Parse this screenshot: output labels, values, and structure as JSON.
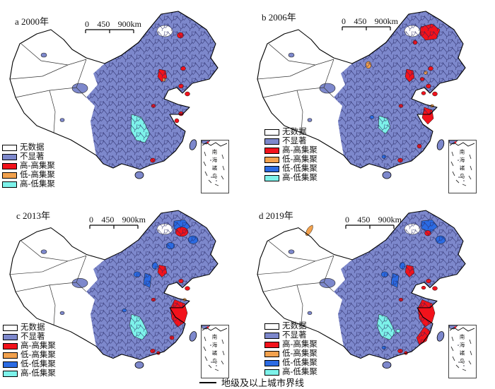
{
  "figure": {
    "colors": {
      "no_data": "#ffffff",
      "not_significant": "#7d88cc",
      "high_high": "#f2121b",
      "low_high": "#f2a14d",
      "low_low": "#2b6be3",
      "high_low": "#7df2ea",
      "boundary": "#000000",
      "county_line": "#23235e"
    },
    "scalebar": {
      "ticks": [
        "0",
        "450",
        "900km"
      ]
    },
    "footer": {
      "label": "地级及以上城市界线"
    },
    "panels": [
      {
        "id": "a",
        "label": "a 2000年",
        "inset_label": "南海诸岛",
        "legend": [
          {
            "label": "无数据",
            "color": "#ffffff"
          },
          {
            "label": "不显著",
            "color": "#7d88cc"
          },
          {
            "label": "高-高集聚",
            "color": "#f2121b"
          },
          {
            "label": "低-高集聚",
            "color": "#f2a14d"
          },
          {
            "label": "高-低集聚",
            "color": "#7df2ea"
          }
        ],
        "clusters": [
          {
            "region": "hulunbuir",
            "type": "no_data"
          },
          {
            "region": "harbin_dot",
            "type": "high_high"
          },
          {
            "region": "liaoning_a",
            "type": "high_high"
          },
          {
            "region": "beijing",
            "type": "high_high"
          },
          {
            "region": "tianjin_dot",
            "type": "low_high"
          },
          {
            "region": "shandong_a",
            "type": "high_high"
          },
          {
            "region": "shandong_b",
            "type": "high_high"
          },
          {
            "region": "central_dot",
            "type": "high_high"
          },
          {
            "region": "delta_small",
            "type": "high_high"
          },
          {
            "region": "delta_small2",
            "type": "high_high"
          },
          {
            "region": "pearl",
            "type": "high_high"
          },
          {
            "region": "sichuan_blob",
            "type": "high_low"
          }
        ]
      },
      {
        "id": "b",
        "label": "b 2006年",
        "inset_label": "南海诸岛",
        "legend": [
          {
            "label": "无数据",
            "color": "#ffffff"
          },
          {
            "label": "不显著",
            "color": "#7d88cc"
          },
          {
            "label": "高-高集聚",
            "color": "#f2121b"
          },
          {
            "label": "低-高集聚",
            "color": "#f2a14d"
          },
          {
            "label": "低-低集聚",
            "color": "#2b6be3"
          },
          {
            "label": "高-低集聚",
            "color": "#7df2ea"
          }
        ],
        "clusters": [
          {
            "region": "hulunbuir",
            "type": "no_data"
          },
          {
            "region": "harbin_big",
            "type": "high_high"
          },
          {
            "region": "nen_dot",
            "type": "high_high"
          },
          {
            "region": "liaoning_a",
            "type": "high_high"
          },
          {
            "region": "liaoning_orange",
            "type": "low_high"
          },
          {
            "region": "bohai_dot",
            "type": "high_high"
          },
          {
            "region": "beijing",
            "type": "high_high"
          },
          {
            "region": "inner_mongolia_west",
            "type": "low_high"
          },
          {
            "region": "shandong_a",
            "type": "high_high"
          },
          {
            "region": "shandong_b",
            "type": "high_high"
          },
          {
            "region": "shandong_c",
            "type": "high_high"
          },
          {
            "region": "central_dot",
            "type": "high_high"
          },
          {
            "region": "delta_mid",
            "type": "high_high"
          },
          {
            "region": "delta_orange",
            "type": "low_high"
          },
          {
            "region": "fujian_dot",
            "type": "high_high"
          },
          {
            "region": "pearl",
            "type": "high_high"
          },
          {
            "region": "sichuan_blob_small",
            "type": "high_low"
          },
          {
            "region": "chongqing_blue",
            "type": "low_low"
          },
          {
            "region": "guangxi_blue",
            "type": "low_low"
          }
        ]
      },
      {
        "id": "c",
        "label": "c 2013年",
        "inset_label": "南海诸岛",
        "legend": [
          {
            "label": "无数据",
            "color": "#ffffff"
          },
          {
            "label": "不显著",
            "color": "#7d88cc"
          },
          {
            "label": "高-高集聚",
            "color": "#f2121b"
          },
          {
            "label": "低-高集聚",
            "color": "#f2a14d"
          },
          {
            "label": "低-低集聚",
            "color": "#2b6be3"
          },
          {
            "label": "高-低集聚",
            "color": "#7df2ea"
          }
        ],
        "clusters": [
          {
            "region": "hulunbuir",
            "type": "no_data"
          },
          {
            "region": "ne_blue_a",
            "type": "low_low"
          },
          {
            "region": "ne_blue_b",
            "type": "low_low"
          },
          {
            "region": "ne_blue_c",
            "type": "low_low"
          },
          {
            "region": "harbin_mid",
            "type": "high_high"
          },
          {
            "region": "hebei_blue",
            "type": "low_low"
          },
          {
            "region": "shanxi_blue",
            "type": "low_low"
          },
          {
            "region": "north_blue",
            "type": "low_low"
          },
          {
            "region": "beijing",
            "type": "high_high"
          },
          {
            "region": "shandong_a",
            "type": "high_high"
          },
          {
            "region": "shandong_b",
            "type": "high_high"
          },
          {
            "region": "central_dot",
            "type": "high_high"
          },
          {
            "region": "delta_big",
            "type": "high_high"
          },
          {
            "region": "delta_orange",
            "type": "low_high"
          },
          {
            "region": "fujian_dot",
            "type": "high_high"
          },
          {
            "region": "pearl",
            "type": "high_high"
          },
          {
            "region": "pearl2",
            "type": "high_high"
          },
          {
            "region": "chongqing_blue",
            "type": "low_low"
          },
          {
            "region": "guizhou_blob",
            "type": "high_low"
          }
        ]
      },
      {
        "id": "d",
        "label": "d 2019年",
        "inset_label": "南海诸岛",
        "legend": [
          {
            "label": "无数据",
            "color": "#ffffff"
          },
          {
            "label": "不显著",
            "color": "#7d88cc"
          },
          {
            "label": "高-高集聚",
            "color": "#f2121b"
          },
          {
            "label": "低-高集聚",
            "color": "#f2a14d"
          },
          {
            "label": "低-低集聚",
            "color": "#2b6be3"
          },
          {
            "label": "高-低集聚",
            "color": "#7df2ea"
          }
        ],
        "clusters": [
          {
            "region": "hulunbuir",
            "type": "no_data"
          },
          {
            "region": "ne_blue_a",
            "type": "low_low"
          },
          {
            "region": "ne_blue_b",
            "type": "low_low"
          },
          {
            "region": "harbin_dot",
            "type": "high_high"
          },
          {
            "region": "xinjiang_orange",
            "type": "low_high"
          },
          {
            "region": "shanxi_blue",
            "type": "low_low"
          },
          {
            "region": "north_blue",
            "type": "low_low"
          },
          {
            "region": "hebei_blue",
            "type": "low_low"
          },
          {
            "region": "beijing",
            "type": "high_high"
          },
          {
            "region": "shandong_a",
            "type": "high_high"
          },
          {
            "region": "shandong_b",
            "type": "high_high"
          },
          {
            "region": "shandong_c",
            "type": "high_high"
          },
          {
            "region": "central_dot",
            "type": "high_high"
          },
          {
            "region": "delta_big",
            "type": "high_high"
          },
          {
            "region": "fujian_coast",
            "type": "high_high"
          },
          {
            "region": "pearl",
            "type": "high_high"
          },
          {
            "region": "pearl2",
            "type": "high_high"
          },
          {
            "region": "guizhou_blob",
            "type": "high_low"
          },
          {
            "region": "hunan_cyan_dot",
            "type": "high_low"
          },
          {
            "region": "guangxi_blue",
            "type": "low_low"
          }
        ]
      }
    ]
  }
}
